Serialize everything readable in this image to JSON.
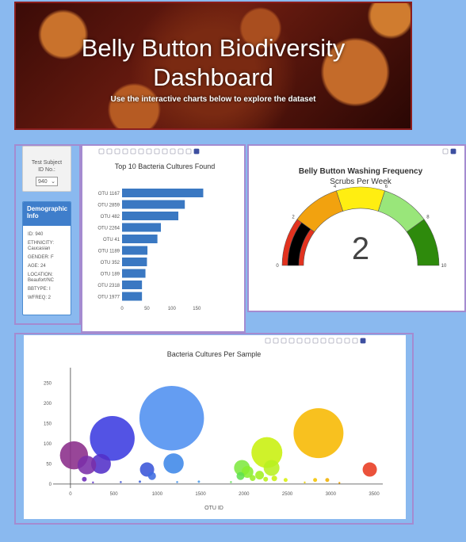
{
  "header": {
    "title_line1": "Belly Button Biodiversity",
    "title_line2": "Dashboard",
    "subtitle": "Use the interactive charts below to explore the dataset"
  },
  "selector": {
    "label_line1": "Test Subject",
    "label_line2": "ID No.:",
    "value": "940"
  },
  "demographic": {
    "title_line1": "Demographic",
    "title_line2": "Info",
    "id": "ID: 940",
    "ethnicity_line1": "ETHNICITY:",
    "ethnicity_line2": "Caucasian",
    "gender": "GENDER: F",
    "age": "AGE: 24",
    "location_line1": "LOCATION:",
    "location_line2": "Beaufort/NC",
    "bbtype": "BBTYPE: I",
    "wfreq": "WFREQ: 2"
  },
  "toolbar_icons": [
    "camera-icon",
    "zoom-icon",
    "pan-icon",
    "box-select-icon",
    "lasso-icon",
    "zoom-in-icon",
    "zoom-out-icon",
    "autoscale-icon",
    "home-icon",
    "spike-icon",
    "hover-closest-icon",
    "hover-compare-icon",
    "plotly-logo-icon"
  ],
  "chart_data": [
    {
      "type": "bar",
      "orientation": "horizontal",
      "title": "Top 10 Bacteria Cultures Found",
      "categories": [
        "OTU 1167",
        "OTU 2859",
        "OTU 482",
        "OTU 2264",
        "OTU 41",
        "OTU 1189",
        "OTU 352",
        "OTU 189",
        "OTU 2318",
        "OTU 1977"
      ],
      "values": [
        163,
        126,
        113,
        78,
        71,
        51,
        50,
        47,
        40,
        40
      ],
      "xlim": [
        0,
        175
      ],
      "xticks": [
        0,
        50,
        100,
        150
      ],
      "color": "#3a78c2"
    },
    {
      "type": "gauge",
      "title": "Belly Button Washing Frequency",
      "subtitle": "Scrubs Per Week",
      "value": 2,
      "range": [
        0,
        10
      ],
      "ticks": [
        0,
        2,
        4,
        6,
        8,
        10
      ],
      "bands": [
        {
          "from": 0,
          "to": 2,
          "color": "#e2321f"
        },
        {
          "from": 2,
          "to": 4,
          "color": "#f2a20f"
        },
        {
          "from": 4,
          "to": 6,
          "color": "#ffee11"
        },
        {
          "from": 6,
          "to": 8,
          "color": "#99e67a"
        },
        {
          "from": 8,
          "to": 10,
          "color": "#2e8a0c"
        }
      ],
      "bar_color": "#000000"
    },
    {
      "type": "scatter",
      "title": "Bacteria Cultures Per Sample",
      "xlabel": "OTU ID",
      "ylabel": "",
      "xlim": [
        -200,
        3600
      ],
      "ylim": [
        -10,
        280
      ],
      "xticks": [
        0,
        500,
        1000,
        1500,
        2000,
        2500,
        3000,
        3500
      ],
      "yticks": [
        0,
        50,
        100,
        150,
        200,
        250
      ],
      "points": [
        {
          "x": 1167,
          "y": 163,
          "c": "#4f8ff0"
        },
        {
          "x": 482,
          "y": 113,
          "c": "#3b3be0"
        },
        {
          "x": 2859,
          "y": 126,
          "c": "#f7b800"
        },
        {
          "x": 2264,
          "y": 78,
          "c": "#c8f00d"
        },
        {
          "x": 41,
          "y": 71,
          "c": "#8a2c8a"
        },
        {
          "x": 189,
          "y": 47,
          "c": "#7a2fa8"
        },
        {
          "x": 352,
          "y": 50,
          "c": "#5230c8"
        },
        {
          "x": 1189,
          "y": 51,
          "c": "#3d88e8"
        },
        {
          "x": 3450,
          "y": 36,
          "c": "#e83a20"
        },
        {
          "x": 2318,
          "y": 40,
          "c": "#b8f020"
        },
        {
          "x": 1977,
          "y": 40,
          "c": "#7ee840"
        },
        {
          "x": 883,
          "y": 36,
          "c": "#3a55d8"
        },
        {
          "x": 2040,
          "y": 30,
          "c": "#8aee30"
        },
        {
          "x": 2180,
          "y": 22,
          "c": "#a0f020"
        },
        {
          "x": 1960,
          "y": 20,
          "c": "#60e050"
        },
        {
          "x": 940,
          "y": 20,
          "c": "#3f6ce0"
        },
        {
          "x": 2100,
          "y": 15,
          "c": "#9aee28"
        },
        {
          "x": 2250,
          "y": 12,
          "c": "#b8f018"
        },
        {
          "x": 2350,
          "y": 14,
          "c": "#c8f010"
        },
        {
          "x": 2480,
          "y": 10,
          "c": "#d8f00e"
        },
        {
          "x": 2820,
          "y": 10,
          "c": "#f4c400"
        },
        {
          "x": 2960,
          "y": 10,
          "c": "#f0b000"
        },
        {
          "x": 160,
          "y": 12,
          "c": "#6a2ab8"
        },
        {
          "x": 1480,
          "y": 6,
          "c": "#4a9ae8"
        },
        {
          "x": 1850,
          "y": 5,
          "c": "#68e060"
        },
        {
          "x": 580,
          "y": 5,
          "c": "#3a50d0"
        },
        {
          "x": 260,
          "y": 4,
          "c": "#5a30c8"
        },
        {
          "x": 1230,
          "y": 5,
          "c": "#3f90e8"
        },
        {
          "x": 800,
          "y": 6,
          "c": "#3a60d8"
        },
        {
          "x": 2700,
          "y": 4,
          "c": "#e8d000"
        },
        {
          "x": 3100,
          "y": 3,
          "c": "#f0a000"
        }
      ]
    }
  ]
}
